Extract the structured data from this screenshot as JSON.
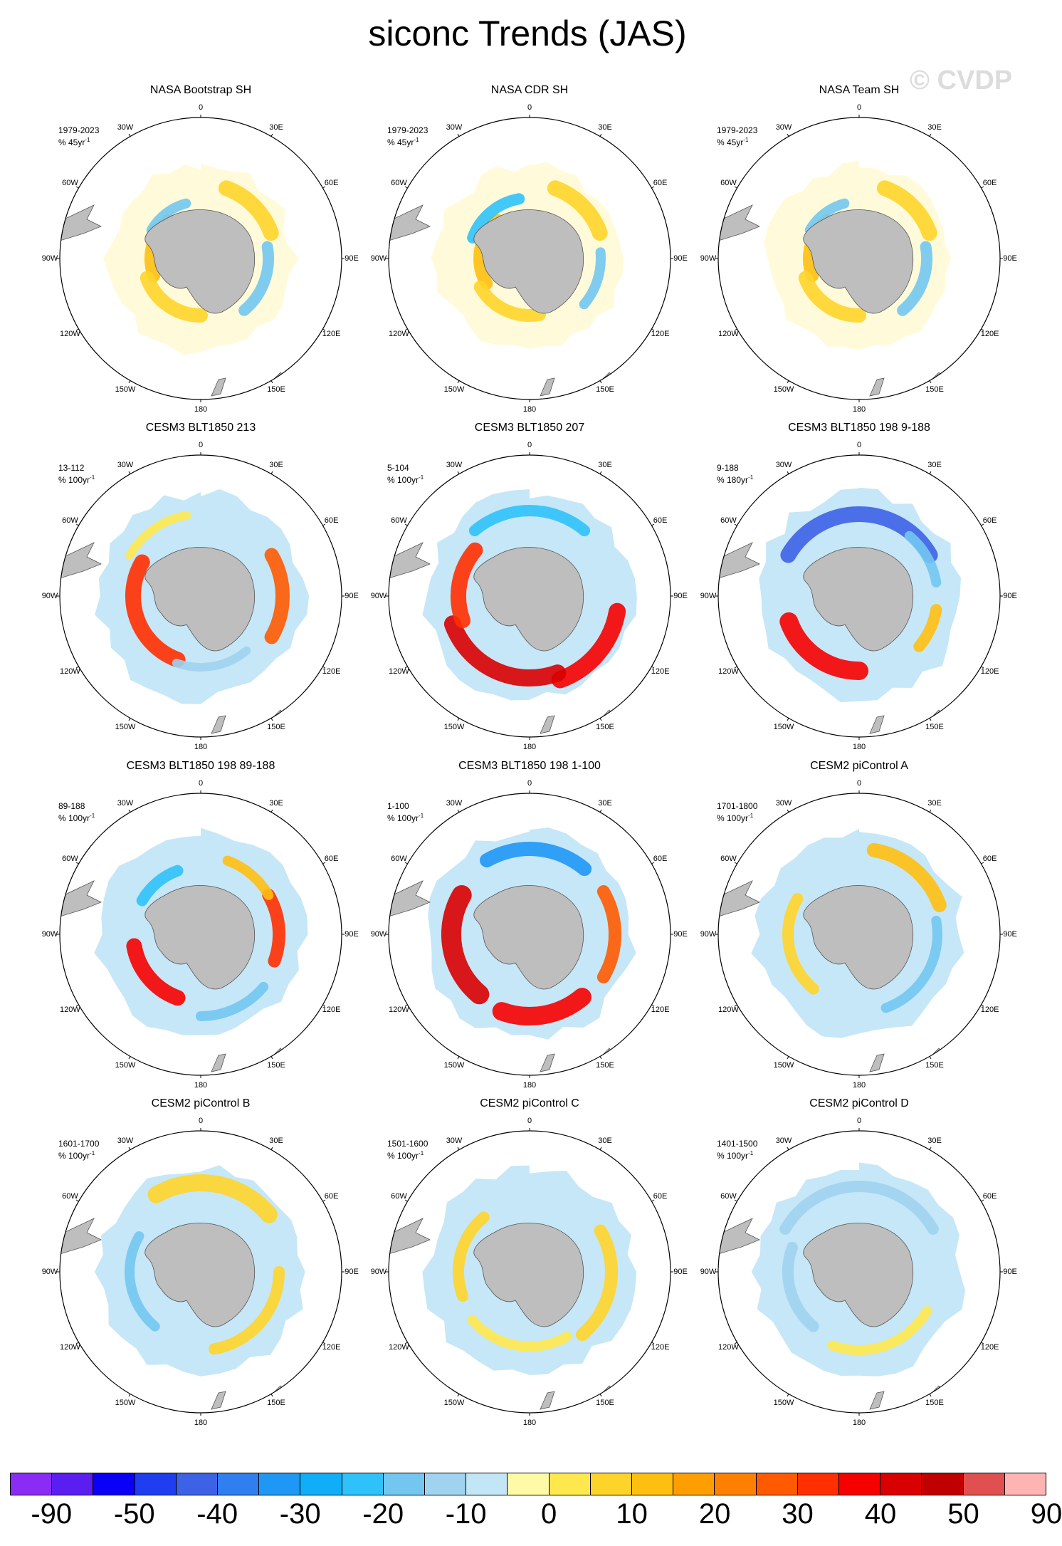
{
  "title": "siconc Trends (JAS)",
  "watermark": "© CVDP",
  "longitude_labels": [
    "0",
    "30E",
    "60E",
    "90E",
    "120E",
    "150E",
    "180",
    "150W",
    "120W",
    "90W",
    "60W",
    "30W"
  ],
  "panels": [
    {
      "title": "NASA Bootstrap SH",
      "period": "1979-2023",
      "units": "% 45yr",
      "units_sup": "-1",
      "pattern": "obs-a"
    },
    {
      "title": "NASA CDR SH",
      "period": "1979-2023",
      "units": "% 45yr",
      "units_sup": "-1",
      "pattern": "obs-b"
    },
    {
      "title": "NASA Team SH",
      "period": "1979-2023",
      "units": "% 45yr",
      "units_sup": "-1",
      "pattern": "obs-c"
    },
    {
      "title": "CESM3 BLT1850 213",
      "period": "13-112",
      "units": "% 100yr",
      "units_sup": "-1",
      "pattern": "m1"
    },
    {
      "title": "CESM3 BLT1850 207",
      "period": "5-104",
      "units": "% 100yr",
      "units_sup": "-1",
      "pattern": "m2"
    },
    {
      "title": "CESM3 BLT1850 198 9-188",
      "period": "9-188",
      "units": "% 180yr",
      "units_sup": "-1",
      "pattern": "m3"
    },
    {
      "title": "CESM3 BLT1850 198 89-188",
      "period": "89-188",
      "units": "% 100yr",
      "units_sup": "-1",
      "pattern": "m4"
    },
    {
      "title": "CESM3 BLT1850 198 1-100",
      "period": "1-100",
      "units": "% 100yr",
      "units_sup": "-1",
      "pattern": "m5"
    },
    {
      "title": "CESM2 piControl A",
      "period": "1701-1800",
      "units": "% 100yr",
      "units_sup": "-1",
      "pattern": "c1"
    },
    {
      "title": "CESM2 piControl B",
      "period": "1601-1700",
      "units": "% 100yr",
      "units_sup": "-1",
      "pattern": "c2"
    },
    {
      "title": "CESM2 piControl C",
      "period": "1501-1600",
      "units": "% 100yr",
      "units_sup": "-1",
      "pattern": "c3"
    },
    {
      "title": "CESM2 piControl D",
      "period": "1401-1500",
      "units": "% 100yr",
      "units_sup": "-1",
      "pattern": "c4"
    }
  ],
  "colorbar": {
    "colors": [
      "#8b2cf5",
      "#5a1ff0",
      "#0a00f5",
      "#1f3ef0",
      "#3d62e6",
      "#2f7ff0",
      "#1f97f5",
      "#10aef8",
      "#2fc2fa",
      "#72c6ef",
      "#9fd3f0",
      "#c3e6f7",
      "#fffaa5",
      "#ffe84d",
      "#ffd42a",
      "#ffbf10",
      "#ff9e00",
      "#ff8000",
      "#ff5a00",
      "#ff2f00",
      "#f60000",
      "#d80000",
      "#c00000",
      "#e15050",
      "#ffb4b4"
    ],
    "labels": [
      "-90",
      "-50",
      "-40",
      "-30",
      "-20",
      "-10",
      "0",
      "10",
      "20",
      "30",
      "40",
      "50",
      "90"
    ]
  },
  "colors": {
    "land": "#bebebe",
    "sea_ice_neutral": "#c3e6f7"
  }
}
